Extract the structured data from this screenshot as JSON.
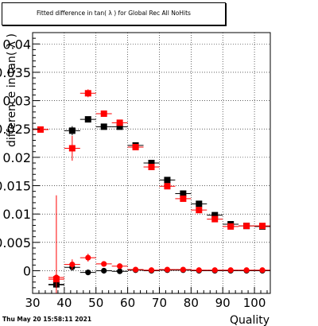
{
  "title": "Fitted difference in tan( λ ) for Global Rec All NoHits",
  "stamp": "Thu May 20 15:58:11 2021",
  "chart_data": {
    "type": "scatter",
    "title": "Fitted difference in tan( λ ) for Global Rec All NoHits",
    "xlabel": "Quality",
    "ylabel": "difference in tan( λ )",
    "xlim": [
      30,
      105
    ],
    "ylim": [
      -0.004,
      0.042
    ],
    "xticks": [
      30,
      40,
      50,
      60,
      70,
      80,
      90,
      100
    ],
    "yticks": [
      0,
      0.005,
      0.01,
      0.015,
      0.02,
      0.025,
      0.03,
      0.035,
      0.04
    ],
    "ytick_labels": [
      "0",
      "0.005",
      "0.01",
      "0.015",
      "0.02",
      "0.025",
      "0.03",
      "0.035",
      "0.04"
    ],
    "grid": true,
    "series": [
      {
        "color": "#000000",
        "marker": "square",
        "points": [
          {
            "x": 37.5,
            "y": -0.0024,
            "yerr": 0.0003
          },
          {
            "x": 42.5,
            "y": 0.0247,
            "yerr": 0.0008
          },
          {
            "x": 47.5,
            "y": 0.0267,
            "yerr": 0.0004
          },
          {
            "x": 52.5,
            "y": 0.0254,
            "yerr": 0.0003
          },
          {
            "x": 57.5,
            "y": 0.0254,
            "yerr": 0.0003
          },
          {
            "x": 62.5,
            "y": 0.0221,
            "yerr": 0.0003
          },
          {
            "x": 67.5,
            "y": 0.019,
            "yerr": 0.0003
          },
          {
            "x": 72.5,
            "y": 0.016,
            "yerr": 0.0003
          },
          {
            "x": 77.5,
            "y": 0.0136,
            "yerr": 0.0003
          },
          {
            "x": 82.5,
            "y": 0.0118,
            "yerr": 0.0003
          },
          {
            "x": 87.5,
            "y": 0.0098,
            "yerr": 0.0003
          },
          {
            "x": 92.5,
            "y": 0.0082,
            "yerr": 0.0003
          },
          {
            "x": 97.5,
            "y": 0.0079,
            "yerr": 0.0003
          },
          {
            "x": 102.5,
            "y": 0.0078,
            "yerr": 0.0003
          }
        ]
      },
      {
        "color": "#ff0000",
        "marker": "square",
        "points": [
          {
            "x": 32.5,
            "y": 0.0249,
            "yerr": 0.0
          },
          {
            "x": 37.5,
            "y": -0.0015,
            "yerr": 0.0
          },
          {
            "x": 42.5,
            "y": 0.0216,
            "yerr": 0.0022
          },
          {
            "x": 47.5,
            "y": 0.0313,
            "yerr": 0.0007
          },
          {
            "x": 52.5,
            "y": 0.0277,
            "yerr": 0.0003
          },
          {
            "x": 57.5,
            "y": 0.0261,
            "yerr": 0.0003
          },
          {
            "x": 62.5,
            "y": 0.0218,
            "yerr": 0.0003
          },
          {
            "x": 67.5,
            "y": 0.0183,
            "yerr": 0.0003
          },
          {
            "x": 72.5,
            "y": 0.0149,
            "yerr": 0.0003
          },
          {
            "x": 77.5,
            "y": 0.0127,
            "yerr": 0.0003
          },
          {
            "x": 82.5,
            "y": 0.0107,
            "yerr": 0.0003
          },
          {
            "x": 87.5,
            "y": 0.0091,
            "yerr": 0.0003
          },
          {
            "x": 92.5,
            "y": 0.0078,
            "yerr": 0.0003
          },
          {
            "x": 97.5,
            "y": 0.0079,
            "yerr": 0.0003
          },
          {
            "x": 102.5,
            "y": 0.0079,
            "yerr": 0.0003
          }
        ]
      },
      {
        "color": "#000000",
        "marker": "circle",
        "points": [
          {
            "x": 37.5,
            "y": -0.0025,
            "yerr": 0.0003
          },
          {
            "x": 42.5,
            "y": 0.0006,
            "yerr": 0.0006
          },
          {
            "x": 47.5,
            "y": -0.0003,
            "yerr": 0.0003
          },
          {
            "x": 52.5,
            "y": 0.0,
            "yerr": 0.0002
          },
          {
            "x": 57.5,
            "y": -0.0001,
            "yerr": 0.0002
          },
          {
            "x": 62.5,
            "y": 0.0001,
            "yerr": 0.0002
          },
          {
            "x": 67.5,
            "y": 0.0,
            "yerr": 0.0002
          },
          {
            "x": 72.5,
            "y": 0.0001,
            "yerr": 0.0002
          },
          {
            "x": 77.5,
            "y": 0.0001,
            "yerr": 0.0002
          },
          {
            "x": 82.5,
            "y": 0.0,
            "yerr": 0.0002
          },
          {
            "x": 87.5,
            "y": 0.0,
            "yerr": 0.0002
          },
          {
            "x": 92.5,
            "y": 0.0,
            "yerr": 0.0002
          },
          {
            "x": 97.5,
            "y": 0.0,
            "yerr": 0.0002
          },
          {
            "x": 102.5,
            "y": 0.0,
            "yerr": 0.0002
          }
        ]
      },
      {
        "color": "#ff0000",
        "marker": "circle",
        "points": [
          {
            "x": 32.5,
            "y": 0.0249,
            "yerr": 0.0
          },
          {
            "x": 37.5,
            "y": -0.0012,
            "yerr": 0.0145
          },
          {
            "x": 42.5,
            "y": 0.0011,
            "yerr": 0.0009
          },
          {
            "x": 47.5,
            "y": 0.0023,
            "yerr": 0.0007
          },
          {
            "x": 52.5,
            "y": 0.0012,
            "yerr": 0.0004
          },
          {
            "x": 57.5,
            "y": 0.0008,
            "yerr": 0.0003
          },
          {
            "x": 62.5,
            "y": 0.0002,
            "yerr": 0.0002
          },
          {
            "x": 67.5,
            "y": 0.0001,
            "yerr": 0.0002
          },
          {
            "x": 72.5,
            "y": 0.0002,
            "yerr": 0.0002
          },
          {
            "x": 77.5,
            "y": 0.0002,
            "yerr": 0.0002
          },
          {
            "x": 82.5,
            "y": 0.0001,
            "yerr": 0.0002
          },
          {
            "x": 87.5,
            "y": 0.0001,
            "yerr": 0.0002
          },
          {
            "x": 92.5,
            "y": 0.0001,
            "yerr": 0.0002
          },
          {
            "x": 97.5,
            "y": 0.0001,
            "yerr": 0.0002
          },
          {
            "x": 102.5,
            "y": 0.0001,
            "yerr": 0.0002
          }
        ]
      }
    ]
  }
}
